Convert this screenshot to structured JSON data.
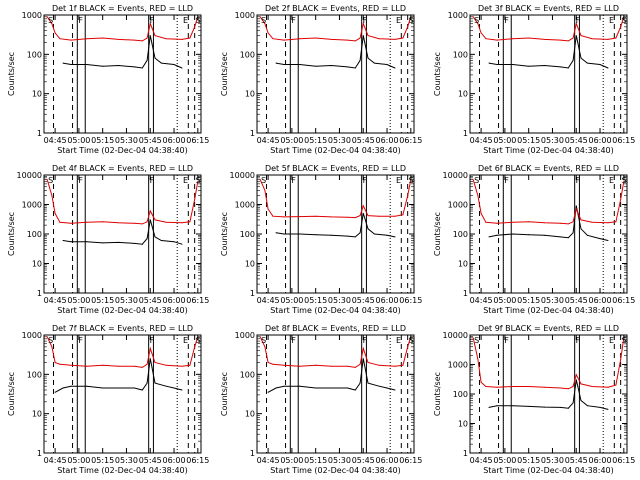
{
  "chart_data": [
    {
      "type": "line",
      "title": "Det 1f BLACK = Events, RED = LLD",
      "xlabel": "Start Time (02-Dec-04 04:38:40)",
      "ylabel": "Counts/sec",
      "yscale": "log",
      "ylim": [
        1,
        1000
      ],
      "xlim": [
        "04:38",
        "06:17"
      ],
      "xticks": [
        "04:45",
        "05:00",
        "05:15",
        "05:30",
        "05:45",
        "06:00",
        "06:15"
      ],
      "yticks": [
        "1",
        "10",
        "100",
        "1000"
      ],
      "annotations": [
        "S",
        "F",
        "F",
        "E",
        "S"
      ],
      "series": [
        {
          "name": "Events",
          "color": "#000000",
          "x": [
            "04:50",
            "04:55",
            "05:05",
            "05:15",
            "05:25",
            "05:35",
            "05:40",
            "05:43",
            "05:45",
            "05:48",
            "05:52",
            "06:00",
            "06:05"
          ],
          "y": [
            60,
            55,
            55,
            50,
            52,
            48,
            45,
            70,
            300,
            80,
            60,
            55,
            45
          ]
        },
        {
          "name": "LLD",
          "color": "#e00000",
          "x": [
            "04:40",
            "04:43",
            "04:45",
            "04:48",
            "04:55",
            "05:05",
            "05:15",
            "05:25",
            "05:35",
            "05:40",
            "05:43",
            "05:45",
            "05:48",
            "05:55",
            "06:05",
            "06:10",
            "06:13",
            "06:15"
          ],
          "y": [
            900,
            600,
            350,
            250,
            230,
            250,
            260,
            240,
            230,
            220,
            260,
            600,
            300,
            250,
            240,
            260,
            500,
            900
          ]
        }
      ]
    },
    {
      "type": "line",
      "title": "Det 2f BLACK = Events, RED = LLD",
      "xlabel": "Start Time (02-Dec-04 04:38:40)",
      "ylabel": "Counts/sec",
      "yscale": "log",
      "ylim": [
        1,
        1000
      ],
      "xlim": [
        "04:38",
        "06:17"
      ],
      "xticks": [
        "04:45",
        "05:00",
        "05:15",
        "05:30",
        "05:45",
        "06:00",
        "06:15"
      ],
      "yticks": [
        "1",
        "10",
        "100",
        "1000"
      ],
      "annotations": [
        "S",
        "F",
        "F",
        "E",
        "S"
      ],
      "series": [
        {
          "name": "Events",
          "color": "#000000",
          "x": [
            "04:50",
            "04:55",
            "05:05",
            "05:15",
            "05:25",
            "05:35",
            "05:40",
            "05:43",
            "05:45",
            "05:48",
            "05:52",
            "06:00",
            "06:05"
          ],
          "y": [
            60,
            55,
            55,
            50,
            52,
            48,
            45,
            70,
            300,
            80,
            60,
            55,
            45
          ]
        },
        {
          "name": "LLD",
          "color": "#e00000",
          "x": [
            "04:40",
            "04:43",
            "04:45",
            "04:48",
            "04:55",
            "05:05",
            "05:15",
            "05:25",
            "05:35",
            "05:40",
            "05:43",
            "05:45",
            "05:48",
            "05:55",
            "06:05",
            "06:10",
            "06:13",
            "06:15"
          ],
          "y": [
            900,
            600,
            350,
            250,
            230,
            250,
            260,
            240,
            230,
            220,
            260,
            600,
            300,
            250,
            240,
            260,
            500,
            900
          ]
        }
      ]
    },
    {
      "type": "line",
      "title": "Det 3f BLACK = Events, RED = LLD",
      "xlabel": "Start Time (02-Dec-04 04:38:40)",
      "ylabel": "Counts/sec",
      "yscale": "log",
      "ylim": [
        1,
        1000
      ],
      "xlim": [
        "04:38",
        "06:17"
      ],
      "xticks": [
        "04:45",
        "05:00",
        "05:15",
        "05:30",
        "05:45",
        "06:00",
        "06:15"
      ],
      "yticks": [
        "1",
        "10",
        "100",
        "1000"
      ],
      "annotations": [
        "S",
        "F",
        "F",
        "E",
        "S"
      ],
      "series": [
        {
          "name": "Events",
          "color": "#000000",
          "x": [
            "04:50",
            "04:55",
            "05:05",
            "05:15",
            "05:25",
            "05:35",
            "05:40",
            "05:43",
            "05:45",
            "05:48",
            "05:52",
            "06:00",
            "06:05"
          ],
          "y": [
            60,
            55,
            55,
            50,
            52,
            48,
            45,
            70,
            300,
            80,
            60,
            55,
            45
          ]
        },
        {
          "name": "LLD",
          "color": "#e00000",
          "x": [
            "04:40",
            "04:43",
            "04:45",
            "04:48",
            "04:55",
            "05:05",
            "05:15",
            "05:25",
            "05:35",
            "05:40",
            "05:43",
            "05:45",
            "05:48",
            "05:55",
            "06:05",
            "06:10",
            "06:13",
            "06:15"
          ],
          "y": [
            900,
            600,
            350,
            250,
            230,
            250,
            260,
            240,
            230,
            220,
            260,
            600,
            300,
            250,
            240,
            260,
            500,
            900
          ]
        }
      ]
    },
    {
      "type": "line",
      "title": "Det 4f BLACK = Events, RED = LLD",
      "xlabel": "Start Time (02-Dec-04 04:38:40)",
      "ylabel": "Counts/sec",
      "yscale": "log",
      "ylim": [
        1,
        10000
      ],
      "xlim": [
        "04:38",
        "06:17"
      ],
      "xticks": [
        "04:45",
        "05:00",
        "05:15",
        "05:30",
        "05:45",
        "06:00",
        "06:15"
      ],
      "yticks": [
        "1",
        "10",
        "100",
        "1000",
        "10000"
      ],
      "annotations": [
        "S",
        "F",
        "F",
        "E",
        "S"
      ],
      "series": [
        {
          "name": "Events",
          "color": "#000000",
          "x": [
            "04:50",
            "04:55",
            "05:05",
            "05:15",
            "05:25",
            "05:35",
            "05:40",
            "05:43",
            "05:45",
            "05:48",
            "05:52",
            "06:00",
            "06:05"
          ],
          "y": [
            60,
            55,
            55,
            50,
            52,
            48,
            45,
            70,
            300,
            80,
            60,
            55,
            45
          ]
        },
        {
          "name": "LLD",
          "color": "#e00000",
          "x": [
            "04:40",
            "04:43",
            "04:45",
            "04:48",
            "04:55",
            "05:05",
            "05:15",
            "05:25",
            "05:35",
            "05:40",
            "05:43",
            "05:45",
            "05:48",
            "05:55",
            "06:05",
            "06:10",
            "06:13",
            "06:15"
          ],
          "y": [
            7000,
            2000,
            500,
            250,
            230,
            250,
            260,
            240,
            230,
            220,
            260,
            600,
            300,
            250,
            240,
            260,
            1500,
            6000
          ]
        }
      ]
    },
    {
      "type": "line",
      "title": "Det 5f BLACK = Events, RED = LLD",
      "xlabel": "Start Time (02-Dec-04 04:38:40)",
      "ylabel": "Counts/sec",
      "yscale": "log",
      "ylim": [
        1,
        10000
      ],
      "xlim": [
        "04:38",
        "06:17"
      ],
      "xticks": [
        "04:45",
        "05:00",
        "05:15",
        "05:30",
        "05:45",
        "06:00",
        "06:15"
      ],
      "yticks": [
        "1",
        "10",
        "100",
        "1000",
        "10000"
      ],
      "annotations": [
        "S",
        "F",
        "F",
        "E",
        "S"
      ],
      "series": [
        {
          "name": "Events",
          "color": "#000000",
          "x": [
            "04:50",
            "04:55",
            "05:05",
            "05:15",
            "05:25",
            "05:35",
            "05:40",
            "05:43",
            "05:45",
            "05:48",
            "05:52",
            "06:00",
            "06:05"
          ],
          "y": [
            110,
            100,
            100,
            95,
            90,
            85,
            80,
            110,
            500,
            150,
            100,
            90,
            80
          ]
        },
        {
          "name": "LLD",
          "color": "#e00000",
          "x": [
            "04:40",
            "04:43",
            "04:45",
            "04:48",
            "04:55",
            "05:05",
            "05:15",
            "05:25",
            "05:35",
            "05:40",
            "05:43",
            "05:45",
            "05:48",
            "05:55",
            "06:05",
            "06:10",
            "06:13",
            "06:15"
          ],
          "y": [
            7000,
            3000,
            700,
            400,
            380,
            390,
            400,
            380,
            370,
            360,
            420,
            900,
            420,
            400,
            400,
            450,
            2000,
            7000
          ]
        }
      ]
    },
    {
      "type": "line",
      "title": "Det 6f BLACK = Events, RED = LLD",
      "xlabel": "Start Time (02-Dec-04 04:38:40)",
      "ylabel": "Counts/sec",
      "yscale": "log",
      "ylim": [
        1,
        10000
      ],
      "xlim": [
        "04:38",
        "06:17"
      ],
      "xticks": [
        "04:45",
        "05:00",
        "05:15",
        "05:30",
        "05:45",
        "06:00",
        "06:15"
      ],
      "yticks": [
        "1",
        "10",
        "100",
        "1000",
        "10000"
      ],
      "annotations": [
        "S",
        "F",
        "F",
        "E",
        "S"
      ],
      "series": [
        {
          "name": "Events",
          "color": "#000000",
          "x": [
            "04:50",
            "04:55",
            "05:05",
            "05:15",
            "05:25",
            "05:35",
            "05:40",
            "05:43",
            "05:45",
            "05:48",
            "05:52",
            "06:00",
            "06:05"
          ],
          "y": [
            80,
            90,
            100,
            95,
            90,
            80,
            75,
            110,
            900,
            150,
            90,
            70,
            60
          ]
        },
        {
          "name": "LLD",
          "color": "#e00000",
          "x": [
            "04:40",
            "04:43",
            "04:45",
            "04:48",
            "04:55",
            "05:05",
            "05:15",
            "05:25",
            "05:35",
            "05:40",
            "05:43",
            "05:45",
            "05:48",
            "05:55",
            "06:05",
            "06:10",
            "06:13",
            "06:15"
          ],
          "y": [
            7000,
            2000,
            500,
            250,
            230,
            250,
            260,
            240,
            230,
            220,
            260,
            700,
            300,
            250,
            240,
            260,
            1500,
            6000
          ]
        }
      ]
    },
    {
      "type": "line",
      "title": "Det 7f BLACK = Events, RED = LLD",
      "xlabel": "Start Time (02-Dec-04 04:38:40)",
      "ylabel": "Counts/sec",
      "yscale": "log",
      "ylim": [
        1,
        1000
      ],
      "xlim": [
        "04:38",
        "06:17"
      ],
      "xticks": [
        "04:45",
        "05:00",
        "05:15",
        "05:30",
        "05:45",
        "06:00",
        "06:15"
      ],
      "yticks": [
        "1",
        "10",
        "100",
        "1000"
      ],
      "annotations": [
        "S",
        "F",
        "F",
        "E",
        "S"
      ],
      "series": [
        {
          "name": "Events",
          "color": "#000000",
          "x": [
            "04:45",
            "04:50",
            "04:55",
            "05:05",
            "05:15",
            "05:25",
            "05:35",
            "05:40",
            "05:43",
            "05:45",
            "05:48",
            "05:55",
            "06:00",
            "06:05"
          ],
          "y": [
            35,
            45,
            50,
            50,
            45,
            45,
            45,
            40,
            60,
            250,
            60,
            50,
            45,
            40
          ]
        },
        {
          "name": "LLD",
          "color": "#e00000",
          "x": [
            "04:40",
            "04:43",
            "04:45",
            "04:48",
            "04:55",
            "05:05",
            "05:15",
            "05:25",
            "05:35",
            "05:40",
            "05:43",
            "05:45",
            "05:48",
            "05:55",
            "06:05",
            "06:10",
            "06:13",
            "06:15"
          ],
          "y": [
            900,
            500,
            200,
            180,
            170,
            160,
            170,
            160,
            160,
            150,
            180,
            450,
            200,
            170,
            160,
            170,
            500,
            900
          ]
        }
      ]
    },
    {
      "type": "line",
      "title": "Det 8f BLACK = Events, RED = LLD",
      "xlabel": "Start Time (02-Dec-04 04:38:40)",
      "ylabel": "Counts/sec",
      "yscale": "log",
      "ylim": [
        1,
        1000
      ],
      "xlim": [
        "04:38",
        "06:17"
      ],
      "xticks": [
        "04:45",
        "05:00",
        "05:15",
        "05:30",
        "05:45",
        "06:00",
        "06:15"
      ],
      "yticks": [
        "1",
        "10",
        "100",
        "1000"
      ],
      "annotations": [
        "S",
        "F",
        "F",
        "E",
        "S"
      ],
      "series": [
        {
          "name": "Events",
          "color": "#000000",
          "x": [
            "04:45",
            "04:50",
            "04:55",
            "05:05",
            "05:15",
            "05:25",
            "05:35",
            "05:40",
            "05:43",
            "05:45",
            "05:48",
            "05:55",
            "06:00",
            "06:05"
          ],
          "y": [
            35,
            45,
            50,
            50,
            45,
            45,
            45,
            40,
            60,
            250,
            60,
            50,
            45,
            40
          ]
        },
        {
          "name": "LLD",
          "color": "#e00000",
          "x": [
            "04:40",
            "04:43",
            "04:45",
            "04:48",
            "04:55",
            "05:05",
            "05:15",
            "05:25",
            "05:35",
            "05:40",
            "05:43",
            "05:45",
            "05:48",
            "05:55",
            "06:05",
            "06:10",
            "06:13",
            "06:15"
          ],
          "y": [
            900,
            500,
            200,
            180,
            170,
            160,
            170,
            160,
            160,
            150,
            180,
            450,
            200,
            170,
            160,
            170,
            500,
            900
          ]
        }
      ]
    },
    {
      "type": "line",
      "title": "Det 9f BLACK = Events, RED = LLD",
      "xlabel": "Start Time (02-Dec-04 04:38:40)",
      "ylabel": "Counts/sec",
      "yscale": "log",
      "ylim": [
        1,
        10000
      ],
      "xlim": [
        "04:38",
        "06:17"
      ],
      "xticks": [
        "04:45",
        "05:00",
        "05:15",
        "05:30",
        "05:45",
        "06:00",
        "06:15"
      ],
      "yticks": [
        "1",
        "10",
        "100",
        "1000",
        "10000"
      ],
      "annotations": [
        "S",
        "F",
        "F",
        "E",
        "S"
      ],
      "series": [
        {
          "name": "Events",
          "color": "#000000",
          "x": [
            "04:50",
            "04:55",
            "05:05",
            "05:15",
            "05:25",
            "05:35",
            "05:40",
            "05:43",
            "05:45",
            "05:48",
            "05:52",
            "06:00",
            "06:05"
          ],
          "y": [
            35,
            40,
            40,
            38,
            36,
            35,
            33,
            50,
            300,
            60,
            40,
            35,
            30
          ]
        },
        {
          "name": "LLD",
          "color": "#e00000",
          "x": [
            "04:40",
            "04:43",
            "04:45",
            "04:48",
            "04:55",
            "05:05",
            "05:15",
            "05:25",
            "05:35",
            "05:40",
            "05:43",
            "05:45",
            "05:48",
            "05:55",
            "06:05",
            "06:10",
            "06:13",
            "06:15"
          ],
          "y": [
            8000,
            1500,
            250,
            180,
            170,
            180,
            180,
            170,
            160,
            150,
            180,
            450,
            220,
            180,
            170,
            200,
            1500,
            8000
          ]
        }
      ]
    }
  ]
}
